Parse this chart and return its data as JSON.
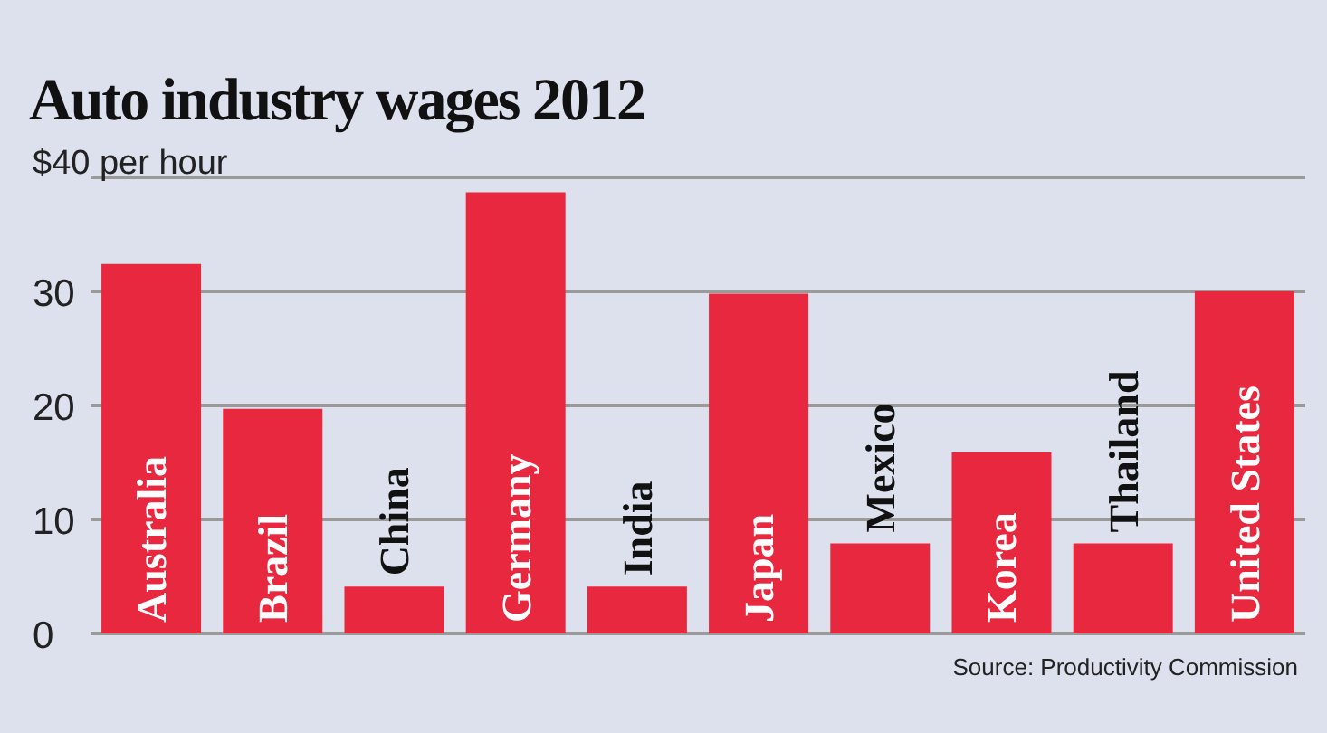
{
  "chart_data": {
    "type": "bar",
    "title": "Auto industry wages 2012",
    "categories": [
      "Australia",
      "Brazil",
      "China",
      "Germany",
      "India",
      "Japan",
      "Mexico",
      "Korea",
      "Thailand",
      "United States"
    ],
    "values": [
      32.4,
      19.7,
      4.1,
      38.7,
      4.1,
      29.8,
      7.9,
      15.9,
      7.9,
      30
    ],
    "color": "#e8283f",
    "ylim": [
      0,
      40
    ],
    "yticks": [
      0,
      10,
      20,
      30,
      {
        "value": 40,
        "label": "$40 per hour"
      }
    ],
    "grid": "y",
    "annotations": [
      "Source: Productivity Commission"
    ]
  }
}
